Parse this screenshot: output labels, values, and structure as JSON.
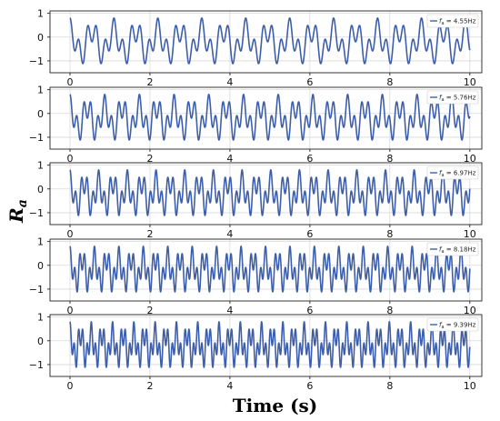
{
  "chart_data": {
    "type": "line",
    "xlabel": "Time (s)",
    "ylabel_main": "R",
    "ylabel_sub": "a",
    "xlim": [
      -0.5,
      10.3
    ],
    "ylim": [
      -1.5,
      1.1
    ],
    "xticks": [
      0,
      2,
      4,
      6,
      8,
      10
    ],
    "xtick_labels": [
      "0",
      "2",
      "4",
      "6",
      "8",
      "10"
    ],
    "yticks": [
      1,
      0,
      -1
    ],
    "ytick_labels": [
      "1",
      "0",
      "−1"
    ],
    "grid": true,
    "legend_position": "top-right",
    "line_color": "#3d5fab",
    "panels": [
      {
        "legend_label": "f",
        "legend_sub": "a",
        "legend_value": " = 4.55Hz",
        "frequency_hz": 4.55,
        "formula": "Ra(t) = 0.55*cos(2*pi*0.4*f*t) + 0.55*cos(2*pi*f*t), period = 5/f",
        "y_min": -1.2,
        "y_max": 0.8
      },
      {
        "legend_label": "f",
        "legend_sub": "a",
        "legend_value": " = 5.76Hz",
        "frequency_hz": 5.76,
        "formula": "Ra(t) = 0.55*cos(2*pi*0.4*f*t) + 0.55*cos(2*pi*f*t), period = 5/f",
        "y_min": -1.2,
        "y_max": 0.8
      },
      {
        "legend_label": "f",
        "legend_sub": "a",
        "legend_value": " = 6.97Hz",
        "frequency_hz": 6.97,
        "formula": "Ra(t) = 0.55*cos(2*pi*0.4*f*t) + 0.55*cos(2*pi*f*t), period = 5/f",
        "y_min": -1.2,
        "y_max": 0.8
      },
      {
        "legend_label": "f",
        "legend_sub": "a",
        "legend_value": " = 8.18Hz",
        "frequency_hz": 8.18,
        "formula": "Ra(t) = 0.55*cos(2*pi*0.4*f*t) + 0.55*cos(2*pi*f*t), period = 5/f",
        "y_min": -1.2,
        "y_max": 0.8
      },
      {
        "legend_label": "f",
        "legend_sub": "a",
        "legend_value": " = 9.39Hz",
        "frequency_hz": 9.39,
        "formula": "Ra(t) = 0.55*cos(2*pi*0.4*f*t) + 0.55*cos(2*pi*f*t), period = 5/f",
        "y_min": -1.2,
        "y_max": 0.8
      }
    ]
  }
}
